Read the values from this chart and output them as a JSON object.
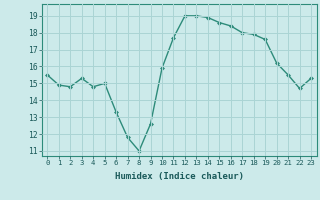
{
  "x": [
    0,
    1,
    2,
    3,
    4,
    5,
    6,
    7,
    8,
    9,
    10,
    11,
    12,
    13,
    14,
    15,
    16,
    17,
    18,
    19,
    20,
    21,
    22,
    23
  ],
  "y": [
    15.5,
    14.9,
    14.8,
    15.3,
    14.8,
    15.0,
    13.3,
    11.8,
    11.0,
    12.6,
    15.9,
    17.7,
    19.0,
    19.0,
    18.9,
    18.6,
    18.4,
    18.0,
    17.9,
    17.6,
    16.2,
    15.5,
    14.7,
    15.3
  ],
  "xlabel": "Humidex (Indice chaleur)",
  "ylim": [
    10.7,
    19.7
  ],
  "xlim": [
    -0.5,
    23.5
  ],
  "yticks": [
    11,
    12,
    13,
    14,
    15,
    16,
    17,
    18,
    19
  ],
  "xticks": [
    0,
    1,
    2,
    3,
    4,
    5,
    6,
    7,
    8,
    9,
    10,
    11,
    12,
    13,
    14,
    15,
    16,
    17,
    18,
    19,
    20,
    21,
    22,
    23
  ],
  "line_color": "#2d8b7a",
  "marker_color": "#2d8b7a",
  "bg_color": "#cceaea",
  "grid_color": "#aad4d4",
  "axis_color": "#2d8b7a",
  "font_color": "#1a5a5a"
}
